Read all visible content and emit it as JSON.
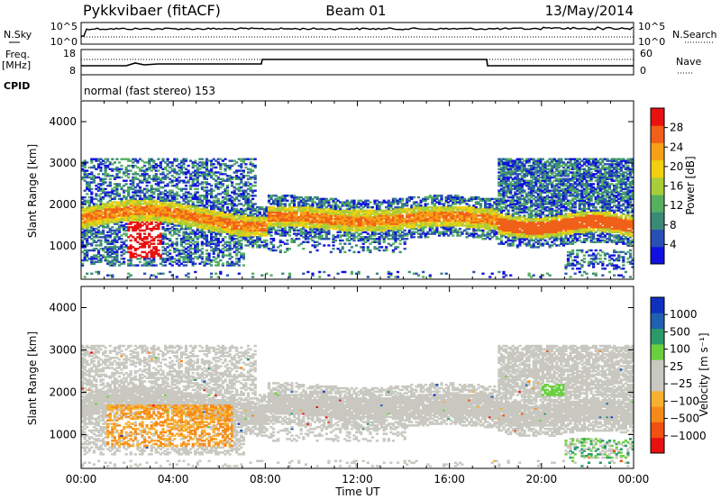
{
  "header": {
    "station": "Pykkvibaer (fitACF)",
    "beam": "Beam 01",
    "date": "13/May/2014"
  },
  "noise_panel": {
    "left_label": "N.Sky",
    "right_label": "N.Search",
    "ticks_left": [
      "10^5",
      "10^0"
    ],
    "ticks_right": [
      "10^5",
      "10^0"
    ]
  },
  "freq_panel": {
    "left_label_1": "Freq.",
    "left_label_2": "[MHz]",
    "right_label": "Nave",
    "ticks_left": [
      "18",
      "8"
    ],
    "ticks_right": [
      "60",
      "0"
    ]
  },
  "cpid": {
    "label": "CPID",
    "text": "normal (fast stereo) 153"
  },
  "colors": {
    "power": [
      "#1010e0",
      "#2a4fb4",
      "#3b8a78",
      "#55b060",
      "#a8cc3a",
      "#f0d010",
      "#f7a015",
      "#f06018",
      "#e81010"
    ],
    "velocity": [
      "#e81010",
      "#f05010",
      "#f58a1a",
      "#f7b030",
      "#c8c8c0",
      "#c8c8c0",
      "#6ad040",
      "#2a9a6a",
      "#2060b0",
      "#1030c0"
    ]
  },
  "chart_data": [
    {
      "type": "heatmap",
      "title": "",
      "xlabel": "",
      "ylabel": "Slant Range [km]",
      "xlim": [
        "00:00",
        "24:00"
      ],
      "ylim": [
        200,
        4500
      ],
      "y_ticks": [
        "1000",
        "2000",
        "3000",
        "4000"
      ],
      "colorbar": {
        "label": "Power [dB]",
        "ticks": [
          "4",
          "8",
          "12",
          "16",
          "20",
          "24",
          "28"
        ]
      }
    },
    {
      "type": "heatmap",
      "title": "",
      "xlabel": "Time UT",
      "ylabel": "Slant Range [km]",
      "xlim": [
        "00:00",
        "24:00"
      ],
      "ylim": [
        200,
        4500
      ],
      "x_ticks": [
        "00:00",
        "04:00",
        "08:00",
        "12:00",
        "16:00",
        "20:00",
        "00:00"
      ],
      "y_ticks": [
        "1000",
        "2000",
        "3000",
        "4000"
      ],
      "colorbar": {
        "label": "Velocity [m s⁻¹]",
        "ticks": [
          "1000",
          "500",
          "100",
          "25",
          "−25",
          "−100",
          "−500",
          "−1000"
        ]
      }
    }
  ]
}
